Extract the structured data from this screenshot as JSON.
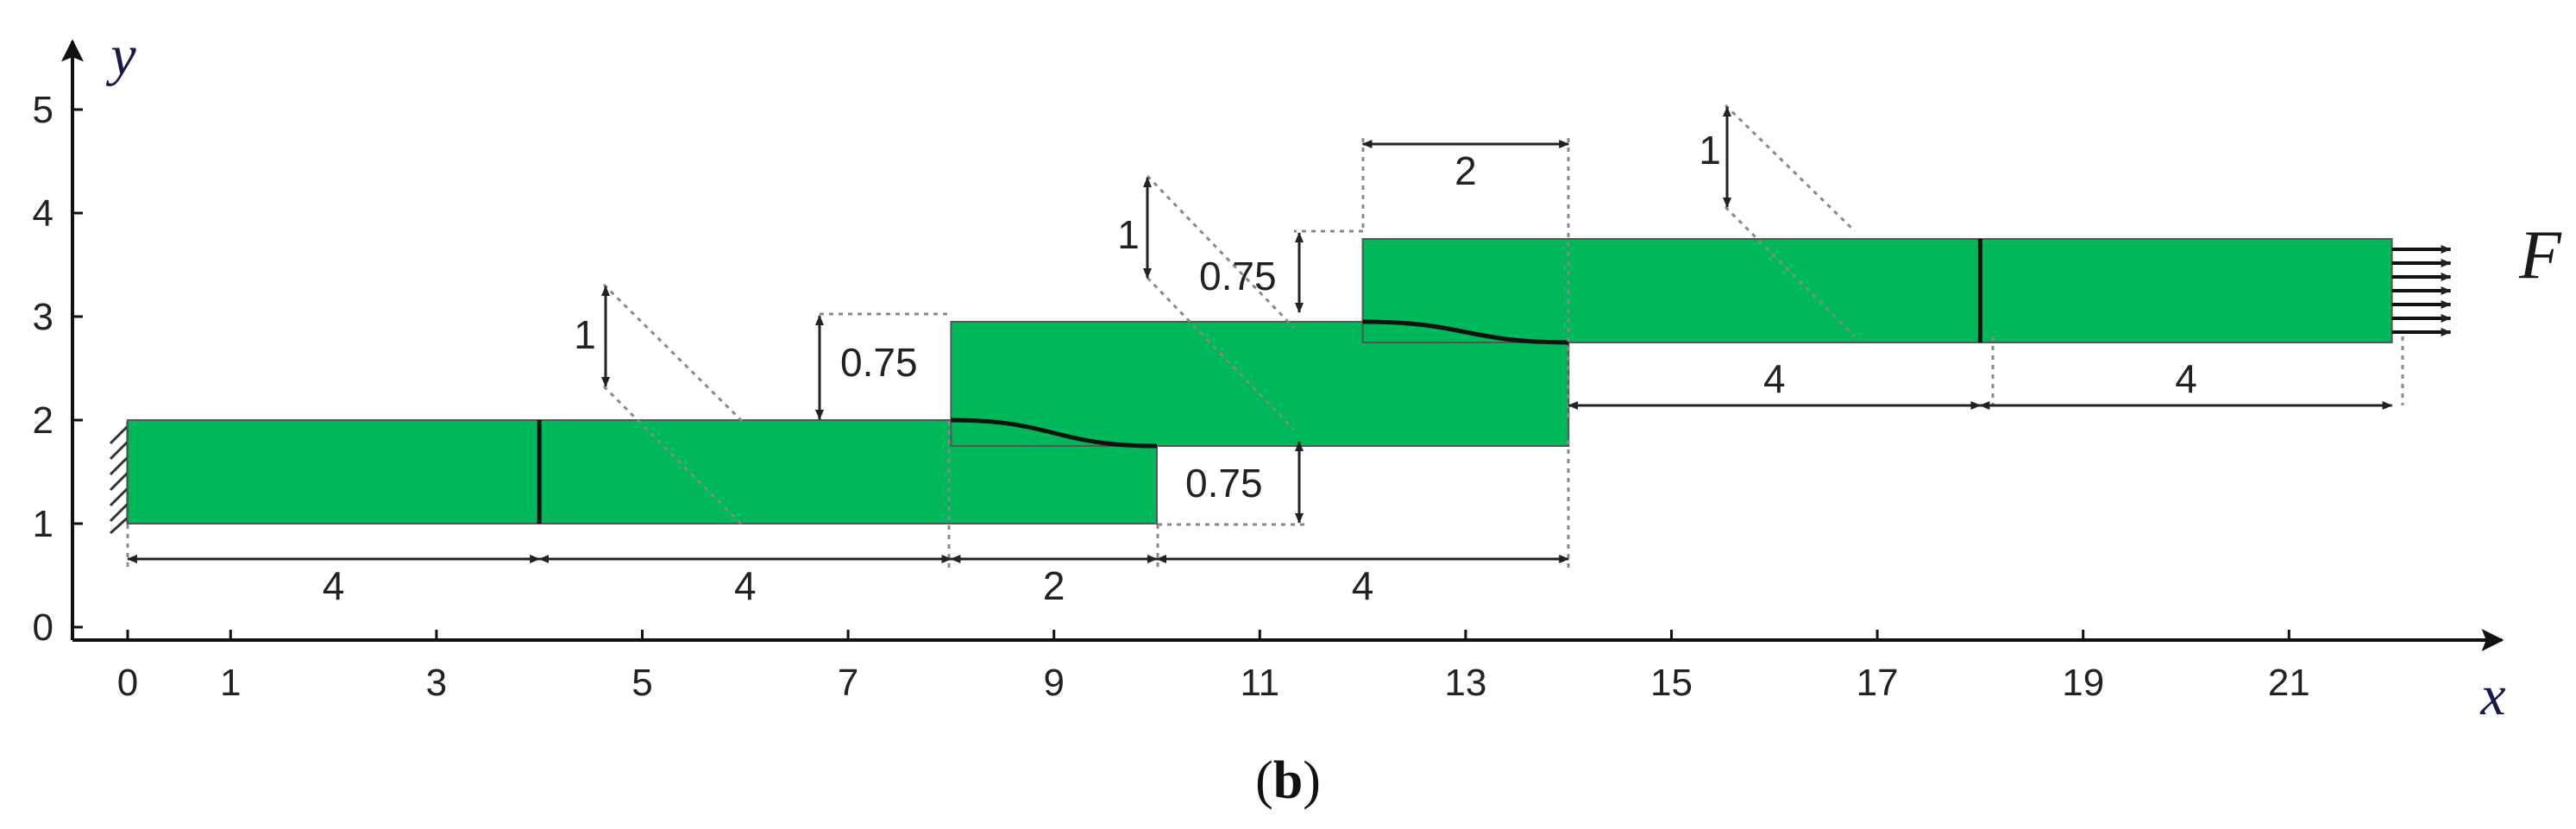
{
  "axes": {
    "x_label": "x",
    "y_label": "y",
    "x_ticks": [
      0,
      1,
      3,
      5,
      7,
      9,
      11,
      13,
      15,
      17,
      19,
      21
    ],
    "y_ticks": [
      0,
      1,
      2,
      3,
      4,
      5
    ],
    "x_range": [
      0,
      23.5
    ],
    "y_range": [
      0,
      5.5
    ]
  },
  "colors": {
    "part": "#00b85c",
    "outline": "#555555",
    "dim": "#222222",
    "dotted": "#888888"
  },
  "parts": [
    {
      "id": "plate-1",
      "x": [
        0,
        10
      ],
      "y": [
        1,
        2
      ]
    },
    {
      "id": "plate-2",
      "x": [
        8,
        14
      ],
      "y": [
        1.75,
        2.95
      ]
    },
    {
      "id": "plate-3",
      "x": [
        12,
        22
      ],
      "y": [
        2.75,
        3.75
      ]
    }
  ],
  "section_lines_x": [
    4,
    18
  ],
  "interfaces": [
    {
      "x": [
        8,
        10
      ],
      "y": [
        2,
        1.75
      ]
    },
    {
      "x": [
        12,
        14
      ],
      "y": [
        2.95,
        2.75
      ]
    }
  ],
  "dimensions": {
    "bottom": [
      {
        "from": 0,
        "to": 4,
        "label": "4"
      },
      {
        "from": 4,
        "to": 8,
        "label": "4"
      },
      {
        "from": 8,
        "to": 10,
        "label": "2"
      },
      {
        "from": 10,
        "to": 14,
        "label": "4"
      }
    ],
    "right": [
      {
        "from": 14,
        "to": 18,
        "label": "4"
      },
      {
        "from": 18,
        "to": 22,
        "label": "4"
      }
    ],
    "top_overlap": {
      "from": 12,
      "to": 14,
      "label": "2"
    },
    "thickness": [
      {
        "x": 4.6,
        "label": "1"
      },
      {
        "x": 10,
        "label": "1"
      },
      {
        "x": 15.4,
        "label": "1"
      }
    ],
    "offsets": [
      {
        "label": "0.75"
      },
      {
        "label": "0.75"
      },
      {
        "label": "0.75"
      }
    ]
  },
  "load": {
    "label": "F",
    "arrow_count": 7
  },
  "caption": {
    "open": "(",
    "letter": "b",
    "close": ")"
  }
}
